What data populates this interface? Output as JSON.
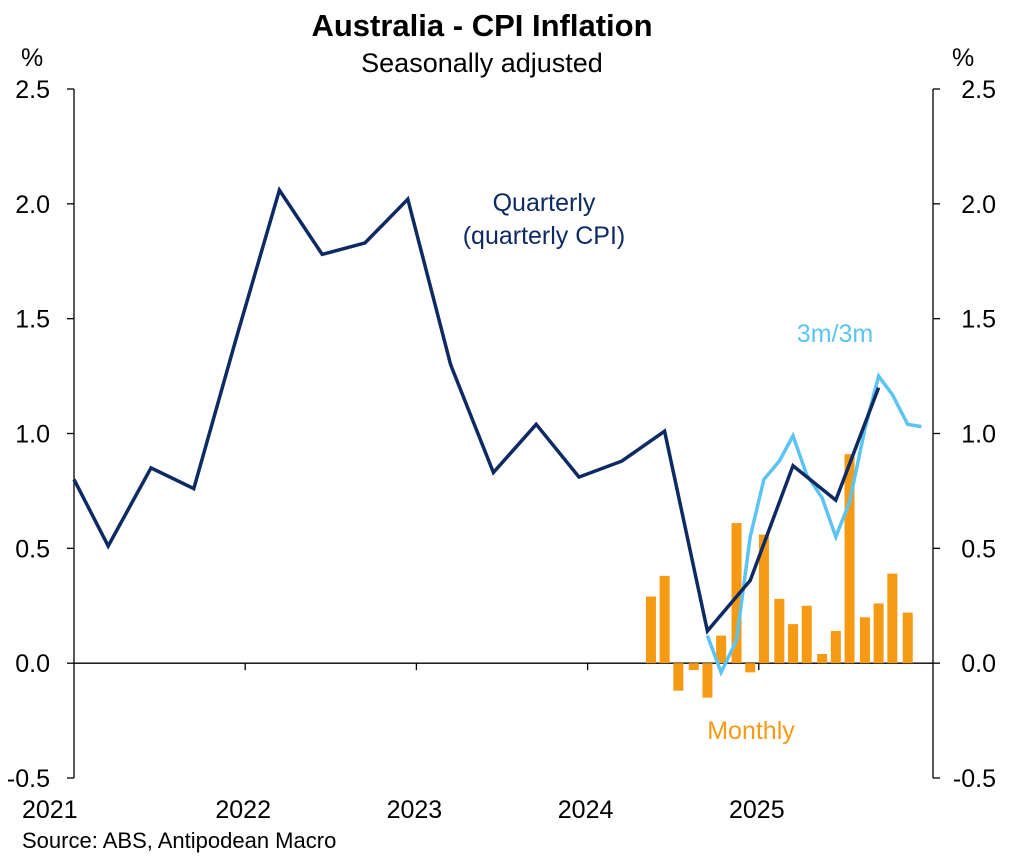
{
  "chart_data": {
    "type": "line",
    "title": "Australia - CPI Inflation",
    "subtitle": "Seasonally adjusted",
    "left_unit": "%",
    "right_unit": "%",
    "source": "Source: ABS, Antipodean Macro",
    "ylim": [
      -0.5,
      2.5
    ],
    "yticks": [
      "2.5",
      "2.0",
      "1.5",
      "1.0",
      "0.5",
      "0.0",
      "-0.5"
    ],
    "ytick_values": [
      2.5,
      2.0,
      1.5,
      1.0,
      0.5,
      0.0,
      -0.5
    ],
    "xlim": [
      2021.0,
      2026.0
    ],
    "xticks": [
      "2021",
      "2022",
      "2023",
      "2024",
      "2025"
    ],
    "xtick_values": [
      2021.0,
      2022.0,
      2023.0,
      2024.0,
      2025.0
    ],
    "series": [
      {
        "name": "Quarterly (quarterly CPI)",
        "kind": "line",
        "color": "#0d2a63",
        "x": [
          2021.0,
          2021.2,
          2021.45,
          2021.7,
          2021.95,
          2022.2,
          2022.45,
          2022.7,
          2022.95,
          2023.2,
          2023.45,
          2023.7,
          2023.95,
          2024.2,
          2024.45,
          2024.7,
          2024.95,
          2025.2,
          2025.45,
          2025.7
        ],
        "values": [
          0.8,
          0.51,
          0.85,
          0.76,
          1.42,
          2.06,
          1.78,
          1.83,
          2.02,
          1.3,
          0.83,
          1.04,
          0.81,
          0.88,
          1.01,
          0.14,
          0.36,
          0.86,
          0.71,
          1.2
        ]
      },
      {
        "name": "3m/3m",
        "kind": "line",
        "color": "#5bc4f2",
        "x": [
          2024.7,
          2024.78,
          2024.87,
          2024.95,
          2025.03,
          2025.12,
          2025.2,
          2025.28,
          2025.37,
          2025.45,
          2025.53,
          2025.62,
          2025.7,
          2025.78,
          2025.87,
          2025.95
        ],
        "values": [
          0.12,
          -0.04,
          0.1,
          0.55,
          0.8,
          0.88,
          0.99,
          0.82,
          0.72,
          0.55,
          0.7,
          1.02,
          1.25,
          1.17,
          1.04,
          1.03
        ]
      },
      {
        "name": "Monthly",
        "kind": "bar",
        "color": "#f59a12",
        "x": [
          2024.37,
          2024.45,
          2024.53,
          2024.62,
          2024.7,
          2024.78,
          2024.87,
          2024.95,
          2025.03,
          2025.12,
          2025.2,
          2025.28,
          2025.37,
          2025.45,
          2025.53,
          2025.62,
          2025.7,
          2025.78,
          2025.87
        ],
        "values": [
          0.29,
          0.38,
          -0.12,
          -0.03,
          -0.15,
          0.12,
          0.61,
          -0.04,
          0.56,
          0.28,
          0.17,
          0.25,
          0.04,
          0.14,
          0.91,
          0.2,
          0.26,
          0.39,
          0.22
        ]
      }
    ],
    "annotations": {
      "quarterly_line1": "Quarterly",
      "quarterly_line2": "(quarterly CPI)",
      "threem": "3m/3m",
      "monthly": "Monthly"
    }
  }
}
